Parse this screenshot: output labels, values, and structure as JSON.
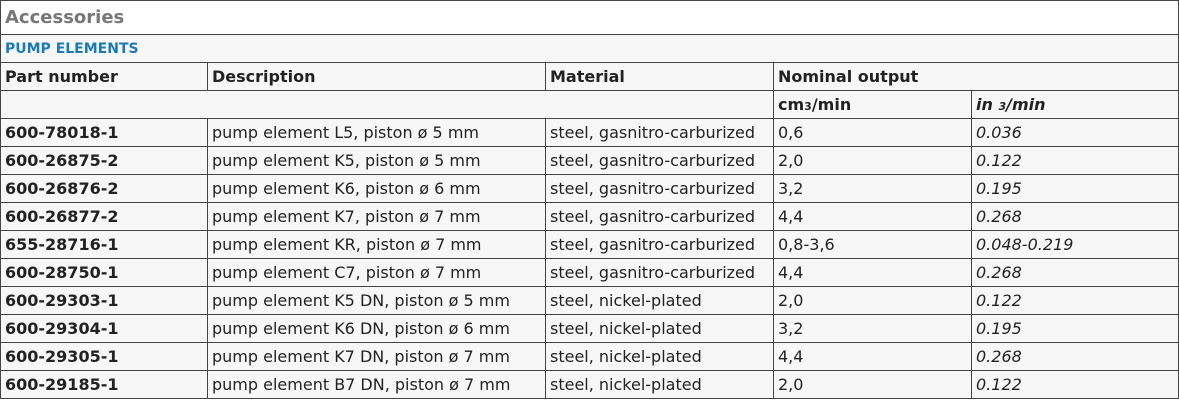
{
  "header": {
    "title": "Accessories",
    "section": "PUMP ELEMENTS"
  },
  "table": {
    "columns": [
      "Part number",
      "Description",
      "Material",
      "Nominal output"
    ],
    "units": [
      {
        "base": "cm",
        "exp": "3",
        "rest": "/min"
      },
      {
        "base": "in ",
        "exp": "3",
        "rest": "/min"
      }
    ],
    "rows": [
      [
        "600-78018-1",
        "pump element L5, piston ø 5 mm",
        "steel, gasnitro-carburized",
        "0,6",
        "0.036"
      ],
      [
        "600-26875-2",
        "pump element K5, piston ø 5 mm",
        "steel, gasnitro-carburized",
        "2,0",
        "0.122"
      ],
      [
        "600-26876-2",
        "pump element K6, piston ø 6 mm",
        "steel, gasnitro-carburized",
        "3,2",
        "0.195"
      ],
      [
        "600-26877-2",
        "pump element K7, piston ø 7 mm",
        "steel, gasnitro-carburized",
        "4,4",
        "0.268"
      ],
      [
        "655-28716-1",
        "pump element KR, piston ø 7 mm",
        "steel, gasnitro-carburized",
        "0,8-3,6",
        "0.048-0.219"
      ],
      [
        "600-28750-1",
        "pump element C7, piston ø 7 mm",
        "steel, gasnitro-carburized",
        "4,4",
        "0.268"
      ],
      [
        "600-29303-1",
        "pump element K5 DN, piston ø 5 mm",
        "steel, nickel-plated",
        "2,0",
        "0.122"
      ],
      [
        "600-29304-1",
        "pump element K6 DN, piston ø 6 mm",
        "steel, nickel-plated",
        "3,2",
        "0.195"
      ],
      [
        "600-29305-1",
        "pump element K7 DN, piston ø 7 mm",
        "steel, nickel-plated",
        "4,4",
        "0.268"
      ],
      [
        "600-29185-1",
        "pump element B7 DN, piston ø 7 mm",
        "steel, nickel-plated",
        "2,0",
        "0.122"
      ]
    ]
  }
}
